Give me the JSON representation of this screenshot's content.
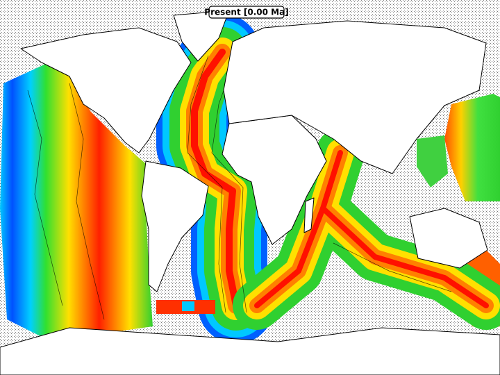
{
  "map": {
    "label": "Present [0.00 Ma]"
  }
}
